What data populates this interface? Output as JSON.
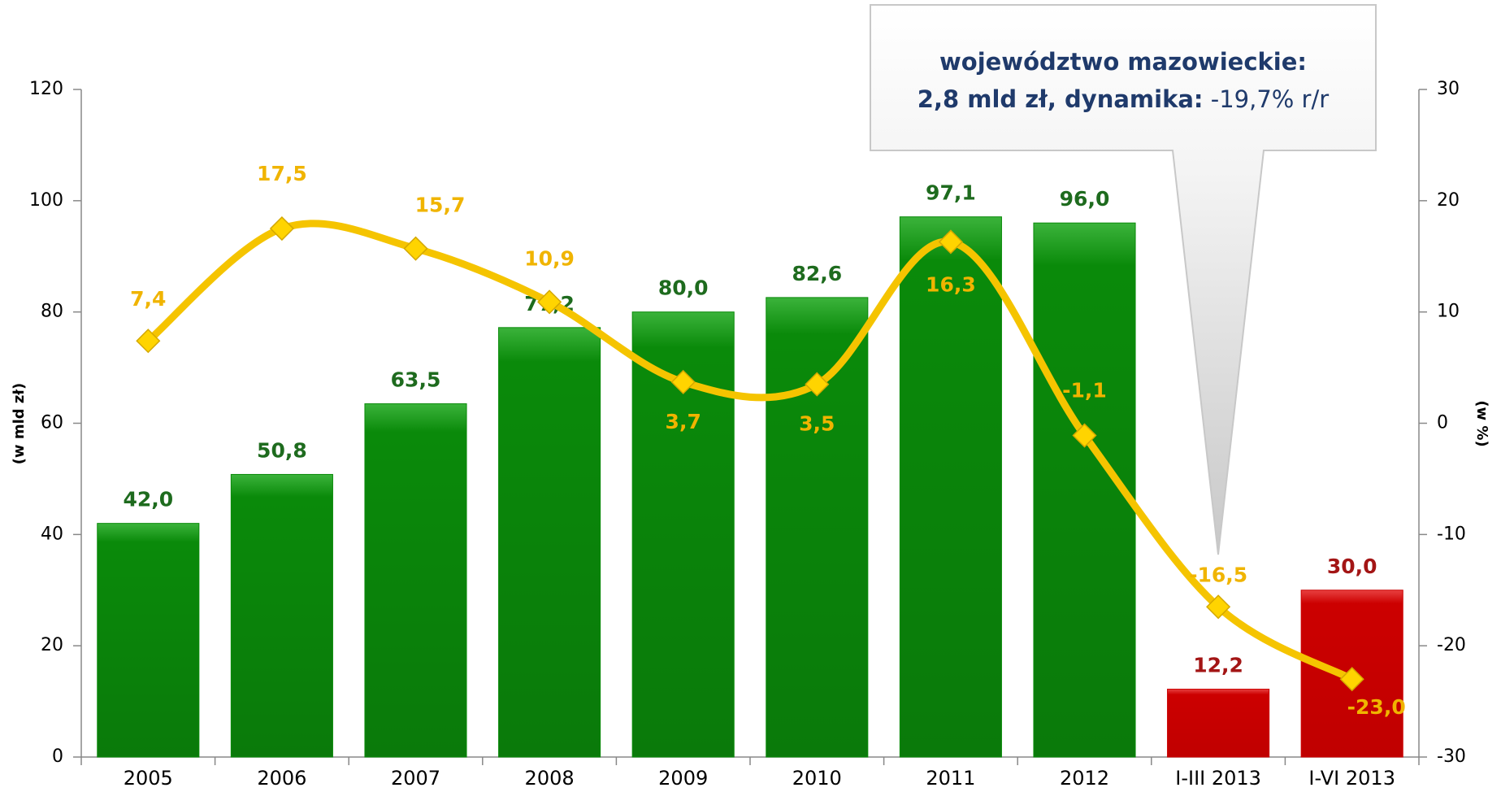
{
  "chart_data": {
    "type": "bar",
    "categories": [
      "2005",
      "2006",
      "2007",
      "2008",
      "2009",
      "2010",
      "2011",
      "2012",
      "I-III 2013",
      "I-VI 2013"
    ],
    "series": [
      {
        "type": "bar",
        "colors": [
          "#0a8a0a",
          "#0a8a0a",
          "#0a8a0a",
          "#0a8a0a",
          "#0a8a0a",
          "#0a8a0a",
          "#0a8a0a",
          "#0a8a0a",
          "#cc0000",
          "#cc0000"
        ],
        "label_colors": [
          "#1e6b1e",
          "#1e6b1e",
          "#1e6b1e",
          "#1e6b1e",
          "#1e6b1e",
          "#1e6b1e",
          "#1e6b1e",
          "#1e6b1e",
          "#a31515",
          "#a31515"
        ],
        "values": [
          42.0,
          50.8,
          63.5,
          77.2,
          80.0,
          82.6,
          97.1,
          96.0,
          12.2,
          30.0
        ],
        "value_labels": [
          "42,0",
          "50,8",
          "63,5",
          "77,2",
          "80,0",
          "82,6",
          "97,1",
          "96,0",
          "12,2",
          "30,0"
        ]
      },
      {
        "type": "line",
        "axis": "y2",
        "color": "#f5c400",
        "label_color": "#f0b400",
        "values": [
          7.4,
          17.5,
          15.7,
          10.9,
          3.7,
          3.5,
          16.3,
          -1.1,
          -16.5,
          -23.0
        ],
        "value_labels": [
          "7,4",
          "17,5",
          "15,7",
          "10,9",
          "3,7",
          "3,5",
          "16,3",
          "-1,1",
          "-16,5",
          "-23,0"
        ]
      }
    ],
    "ylim": [
      0,
      120
    ],
    "yticks": [
      0,
      20,
      40,
      60,
      80,
      100,
      120
    ],
    "y2lim": [
      -30,
      30
    ],
    "y2ticks": [
      -30,
      -20,
      -10,
      0,
      10,
      20,
      30
    ],
    "ylabel": "(w mld zł)",
    "y2label": "(w %)",
    "annotation": [
      "województwo mazowieckie:",
      "2,8 mld zł, dynamika:",
      "-19,7% r/r"
    ]
  }
}
